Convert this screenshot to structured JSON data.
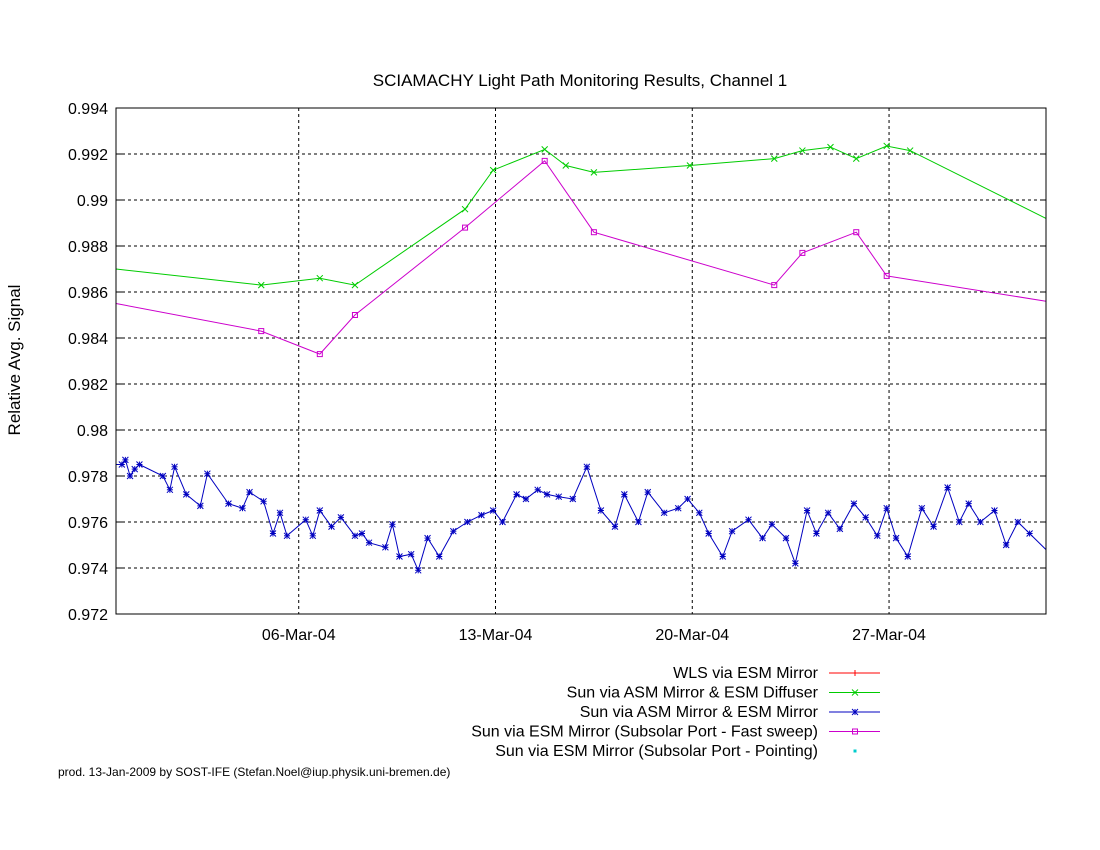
{
  "credit": "prod. 13-Jan-2009 by SOST-IFE (Stefan.Noel@iup.physik.uni-bremen.de)",
  "chart_data": {
    "type": "line",
    "title": "SCIAMACHY Light Path Monitoring Results, Channel 1",
    "xlabel": "",
    "ylabel": "Relative Avg. Signal",
    "xlim": [
      "2004-02-28 12:00",
      "2004-04-01 14:00"
    ],
    "ylim": [
      0.972,
      0.994
    ],
    "xticks": [
      {
        "x": "2004-03-06",
        "label": "06-Mar-04"
      },
      {
        "x": "2004-03-13",
        "label": "13-Mar-04"
      },
      {
        "x": "2004-03-20",
        "label": "20-Mar-04"
      },
      {
        "x": "2004-03-27",
        "label": "27-Mar-04"
      }
    ],
    "yticks": [
      {
        "y": 0.972,
        "label": "0.972"
      },
      {
        "y": 0.974,
        "label": "0.974"
      },
      {
        "y": 0.976,
        "label": "0.976"
      },
      {
        "y": 0.978,
        "label": "0.978"
      },
      {
        "y": 0.98,
        "label": "0.98"
      },
      {
        "y": 0.982,
        "label": "0.982"
      },
      {
        "y": 0.984,
        "label": "0.984"
      },
      {
        "y": 0.986,
        "label": "0.986"
      },
      {
        "y": 0.988,
        "label": "0.988"
      },
      {
        "y": 0.99,
        "label": "0.99"
      },
      {
        "y": 0.992,
        "label": "0.992"
      },
      {
        "y": 0.994,
        "label": "0.994"
      }
    ],
    "grid": true,
    "legend_position": "bottom-right, below the plot",
    "series": [
      {
        "name": "WLS via ESM Mirror",
        "color": "#ff0000",
        "marker": "plus",
        "points": []
      },
      {
        "name": "Sun via ASM Mirror & ESM Diffuser",
        "color": "#00cc00",
        "marker": "cross",
        "points": [
          [
            "2004-02-28 12:00",
            0.987
          ],
          [
            "2004-03-04 16:00",
            0.9863
          ],
          [
            "2004-03-06 18:00",
            0.9866
          ],
          [
            "2004-03-08 00:00",
            0.9863
          ],
          [
            "2004-03-11 22:00",
            0.9896
          ],
          [
            "2004-03-12 22:00",
            0.9913
          ],
          [
            "2004-03-14 18:00",
            0.9922
          ],
          [
            "2004-03-15 12:00",
            0.9915
          ],
          [
            "2004-03-16 12:00",
            0.9912
          ],
          [
            "2004-03-19 22:00",
            0.9915
          ],
          [
            "2004-03-22 22:00",
            0.9918
          ],
          [
            "2004-03-23 22:00",
            0.99215
          ],
          [
            "2004-03-24 22:00",
            0.9923
          ],
          [
            "2004-03-25 20:00",
            0.9918
          ],
          [
            "2004-03-26 22:00",
            0.99235
          ],
          [
            "2004-03-27 18:00",
            0.99215
          ],
          [
            "2004-04-01 14:00",
            0.9892
          ]
        ]
      },
      {
        "name": "Sun via ASM Mirror & ESM Mirror",
        "color": "#0000c0",
        "marker": "star",
        "points": [
          [
            "2004-02-28 12:00",
            0.9785
          ],
          [
            "2004-02-28 17:00",
            0.9785
          ],
          [
            "2004-02-28 20:00",
            0.9787
          ],
          [
            "2004-02-29 00:00",
            0.978
          ],
          [
            "2004-02-29 04:00",
            0.9783
          ],
          [
            "2004-02-29 08:00",
            0.9785
          ],
          [
            "2004-03-01 04:00",
            0.978
          ],
          [
            "2004-03-01 10:00",
            0.9774
          ],
          [
            "2004-03-01 14:00",
            0.9784
          ],
          [
            "2004-03-02 00:00",
            0.9772
          ],
          [
            "2004-03-02 12:00",
            0.9767
          ],
          [
            "2004-03-02 18:00",
            0.9781
          ],
          [
            "2004-03-03 12:00",
            0.9768
          ],
          [
            "2004-03-04 00:00",
            0.9766
          ],
          [
            "2004-03-04 06:00",
            0.9773
          ],
          [
            "2004-03-04 18:00",
            0.9769
          ],
          [
            "2004-03-05 02:00",
            0.9755
          ],
          [
            "2004-03-05 08:00",
            0.9764
          ],
          [
            "2004-03-05 14:00",
            0.9754
          ],
          [
            "2004-03-06 06:00",
            0.9761
          ],
          [
            "2004-03-06 12:00",
            0.9754
          ],
          [
            "2004-03-06 18:00",
            0.9765
          ],
          [
            "2004-03-07 04:00",
            0.9758
          ],
          [
            "2004-03-07 12:00",
            0.9762
          ],
          [
            "2004-03-08 00:00",
            0.9754
          ],
          [
            "2004-03-08 06:00",
            0.9755
          ],
          [
            "2004-03-08 12:00",
            0.9751
          ],
          [
            "2004-03-09 02:00",
            0.9749
          ],
          [
            "2004-03-09 08:00",
            0.9759
          ],
          [
            "2004-03-09 14:00",
            0.9745
          ],
          [
            "2004-03-10 00:00",
            0.9746
          ],
          [
            "2004-03-10 06:00",
            0.9739
          ],
          [
            "2004-03-10 14:00",
            0.9753
          ],
          [
            "2004-03-11 00:00",
            0.9745
          ],
          [
            "2004-03-11 12:00",
            0.9756
          ],
          [
            "2004-03-12 00:00",
            0.976
          ],
          [
            "2004-03-12 12:00",
            0.9763
          ],
          [
            "2004-03-12 22:00",
            0.9765
          ],
          [
            "2004-03-13 06:00",
            0.976
          ],
          [
            "2004-03-13 18:00",
            0.9772
          ],
          [
            "2004-03-14 02:00",
            0.977
          ],
          [
            "2004-03-14 12:00",
            0.9774
          ],
          [
            "2004-03-14 20:00",
            0.9772
          ],
          [
            "2004-03-15 06:00",
            0.9771
          ],
          [
            "2004-03-15 18:00",
            0.977
          ],
          [
            "2004-03-16 06:00",
            0.9784
          ],
          [
            "2004-03-16 18:00",
            0.9765
          ],
          [
            "2004-03-17 06:00",
            0.9758
          ],
          [
            "2004-03-17 14:00",
            0.9772
          ],
          [
            "2004-03-18 02:00",
            0.976
          ],
          [
            "2004-03-18 10:00",
            0.9773
          ],
          [
            "2004-03-19 00:00",
            0.9764
          ],
          [
            "2004-03-19 12:00",
            0.9766
          ],
          [
            "2004-03-19 20:00",
            0.977
          ],
          [
            "2004-03-20 06:00",
            0.9764
          ],
          [
            "2004-03-20 14:00",
            0.9755
          ],
          [
            "2004-03-21 02:00",
            0.9745
          ],
          [
            "2004-03-21 10:00",
            0.9756
          ],
          [
            "2004-03-22 00:00",
            0.9761
          ],
          [
            "2004-03-22 12:00",
            0.9753
          ],
          [
            "2004-03-22 20:00",
            0.9759
          ],
          [
            "2004-03-23 08:00",
            0.9753
          ],
          [
            "2004-03-23 16:00",
            0.9742
          ],
          [
            "2004-03-24 02:00",
            0.9765
          ],
          [
            "2004-03-24 10:00",
            0.9755
          ],
          [
            "2004-03-24 20:00",
            0.9764
          ],
          [
            "2004-03-25 06:00",
            0.9757
          ],
          [
            "2004-03-25 18:00",
            0.9768
          ],
          [
            "2004-03-26 04:00",
            0.9762
          ],
          [
            "2004-03-26 14:00",
            0.9754
          ],
          [
            "2004-03-26 22:00",
            0.9766
          ],
          [
            "2004-03-27 06:00",
            0.9753
          ],
          [
            "2004-03-27 16:00",
            0.9745
          ],
          [
            "2004-03-28 04:00",
            0.9766
          ],
          [
            "2004-03-28 14:00",
            0.9758
          ],
          [
            "2004-03-29 02:00",
            0.9775
          ],
          [
            "2004-03-29 12:00",
            0.976
          ],
          [
            "2004-03-29 20:00",
            0.9768
          ],
          [
            "2004-03-30 06:00",
            0.976
          ],
          [
            "2004-03-30 18:00",
            0.9765
          ],
          [
            "2004-03-31 04:00",
            0.975
          ],
          [
            "2004-03-31 14:00",
            0.976
          ],
          [
            "2004-04-01 00:00",
            0.9755
          ],
          [
            "2004-04-01 14:00",
            0.9748
          ]
        ]
      },
      {
        "name": "Sun via ESM Mirror (Subsolar Port - Fast sweep)",
        "color": "#cc00cc",
        "marker": "square",
        "points": [
          [
            "2004-02-28 12:00",
            0.9855
          ],
          [
            "2004-03-04 16:00",
            0.9843
          ],
          [
            "2004-03-06 18:00",
            0.9833
          ],
          [
            "2004-03-08 00:00",
            0.985
          ],
          [
            "2004-03-11 22:00",
            0.9888
          ],
          [
            "2004-03-14 18:00",
            0.9917
          ],
          [
            "2004-03-16 12:00",
            0.9886
          ],
          [
            "2004-03-22 22:00",
            0.9863
          ],
          [
            "2004-03-23 22:00",
            0.9877
          ],
          [
            "2004-03-25 20:00",
            0.9886
          ],
          [
            "2004-03-26 22:00",
            0.9867
          ],
          [
            "2004-04-01 14:00",
            0.9856
          ]
        ]
      },
      {
        "name": "Sun via ESM Mirror (Subsolar Port - Pointing)",
        "color": "#00cccc",
        "marker": "dot",
        "points": []
      }
    ]
  }
}
